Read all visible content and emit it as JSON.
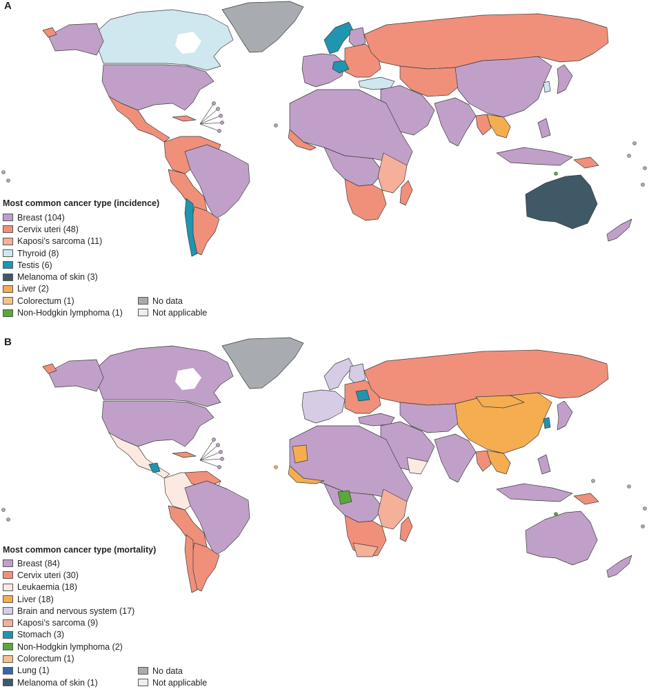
{
  "colors": {
    "breast": "#c0a0c8",
    "cervix": "#f0907a",
    "kaposi": "#f5b09a",
    "thyroid": "#cfe7ef",
    "testis": "#1f95b0",
    "melanoma": "#3f5966",
    "liver": "#f5ad50",
    "colorectum": "#f7c287",
    "nhl": "#5aa83c",
    "leukaemia": "#fbe9e2",
    "brain": "#d6cce6",
    "stomach": "#1f95b0",
    "lung": "#3a66a8",
    "nodata": "#a8acb0",
    "notapplicable": "#eeeeee"
  },
  "panel_a": {
    "letter": "A",
    "legend_title": "Most common cancer type (incidence)",
    "items": [
      {
        "label": "Breast (104)",
        "color": "#c0a0c8"
      },
      {
        "label": "Cervix uteri (48)",
        "color": "#f0907a"
      },
      {
        "label": "Kaposi’s sarcoma (11)",
        "color": "#f5b09a"
      },
      {
        "label": "Thyroid (8)",
        "color": "#cfe7ef"
      },
      {
        "label": "Testis (6)",
        "color": "#1f95b0"
      },
      {
        "label": "Melanoma of skin (3)",
        "color": "#3f5966"
      },
      {
        "label": "Liver (2)",
        "color": "#f5ad50"
      },
      {
        "label": "Colorectum (1)",
        "color": "#f7c287"
      },
      {
        "label": "Non-Hodgkin lymphoma (1)",
        "color": "#5aa83c"
      }
    ],
    "extra_items": [
      {
        "label": "No data",
        "color": "#a8acb0"
      },
      {
        "label": "Not applicable",
        "color": "#eeeeee"
      }
    ]
  },
  "panel_b": {
    "letter": "B",
    "legend_title": "Most common cancer type (mortality)",
    "items": [
      {
        "label": "Breast (84)",
        "color": "#c0a0c8"
      },
      {
        "label": "Cervix uteri (30)",
        "color": "#f0907a"
      },
      {
        "label": "Leukaemia (18)",
        "color": "#fbe9e2"
      },
      {
        "label": "Liver (18)",
        "color": "#f5ad50"
      },
      {
        "label": "Brain and nervous system (17)",
        "color": "#d6cce6"
      },
      {
        "label": "Kaposi’s sarcoma (9)",
        "color": "#f5b09a"
      },
      {
        "label": "Stomach (3)",
        "color": "#1f95b0"
      },
      {
        "label": "Non-Hodgkin lymphoma (2)",
        "color": "#5aa83c"
      },
      {
        "label": "Colorectum (1)",
        "color": "#f7c287"
      },
      {
        "label": "Lung (1)",
        "color": "#3a66a8"
      },
      {
        "label": "Melanoma of skin (1)",
        "color": "#3f5966"
      }
    ],
    "extra_items": [
      {
        "label": "No data",
        "color": "#a8acb0"
      },
      {
        "label": "Not applicable",
        "color": "#eeeeee"
      }
    ]
  }
}
